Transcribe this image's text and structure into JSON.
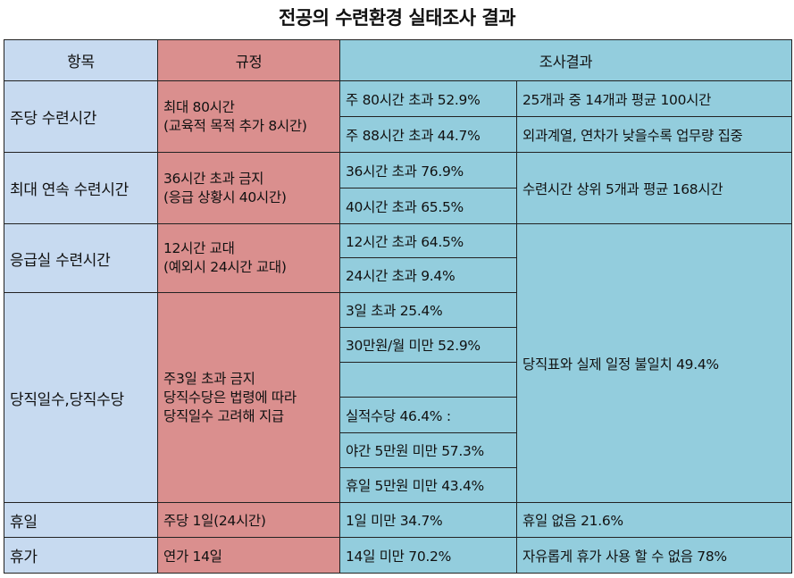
{
  "title": "전공의 수련환경 실태조사 결과",
  "headers": {
    "item": "항목",
    "rule": "규정",
    "result": "조사결과"
  },
  "rows": [
    {
      "item": "주당 수련시간",
      "rule": [
        "최대 80시간",
        "(교육적 목적 추가 8시간)"
      ],
      "results": [
        "주 80시간 초과 52.9%",
        "주 88시간 초과 44.7%"
      ],
      "notes": [
        "25개과 중 14개과 평균 100시간",
        "외과계열, 연차가 낮을수록 업무량 집중"
      ]
    },
    {
      "item": "최대 연속 수련시간",
      "rule": [
        "36시간 초과 금지",
        "(응급 상황시 40시간)"
      ],
      "results": [
        "36시간 초과 76.9%",
        "40시간 초과 65.5%"
      ],
      "notes": [
        "수련시간 상위 5개과 평균 168시간"
      ]
    },
    {
      "item": "응급실 수련시간",
      "rule": [
        "12시간 교대",
        "(예외시 24시간 교대)"
      ],
      "results": [
        "12시간 초과 64.5%",
        "24시간 초과 9.4%"
      ],
      "notes": [
        ""
      ]
    },
    {
      "item": "당직일수,당직수당",
      "rule": [
        "주3일 초과 금지",
        "당직수당은 법령에 따라",
        "당직일수 고려해 지급"
      ],
      "results": [
        "3일 초과 25.4%",
        "30만원/월 미만 52.9%",
        "",
        "실적수당 46.4% :",
        "야간 5만원 미만 57.3%",
        "휴일 5만원 미만 43.4%"
      ],
      "notes": [
        "당직표와 실제 일정 불일치 49.4%"
      ]
    },
    {
      "item": "휴일",
      "rule": [
        "주당 1일(24시간)"
      ],
      "results": [
        "1일 미만 34.7%"
      ],
      "notes": [
        "휴일 없음 21.6%"
      ]
    },
    {
      "item": "휴가",
      "rule": [
        "연가 14일"
      ],
      "results": [
        "14일 미만 70.2%"
      ],
      "notes": [
        "자유롭게 휴가 사용 할 수 없음 78%"
      ]
    }
  ]
}
